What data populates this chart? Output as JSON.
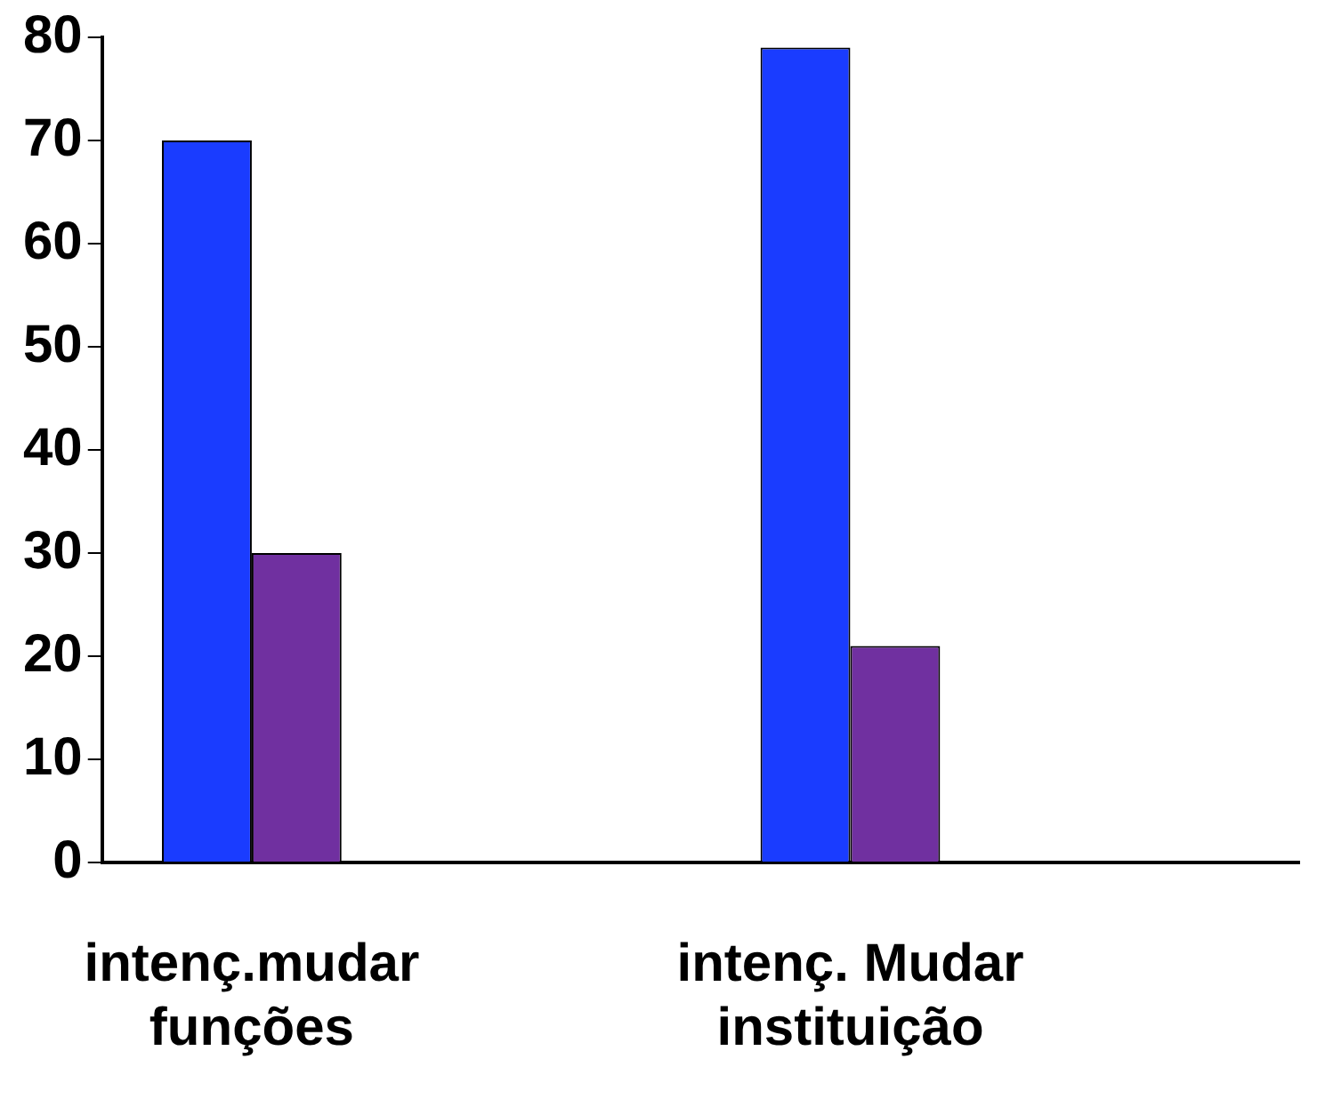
{
  "chart_data": {
    "type": "bar",
    "categories": [
      "intenç.mudar funções",
      null,
      "intenç. Mudar instituição",
      null
    ],
    "series": [
      {
        "color": "#1a3cff",
        "values": [
          70,
          null,
          79,
          null
        ]
      },
      {
        "color": "#7030a0",
        "values": [
          30,
          null,
          21,
          null
        ]
      }
    ],
    "ylim": [
      0,
      80
    ],
    "yticks": [
      0,
      10,
      20,
      30,
      40,
      50,
      60,
      70,
      80
    ],
    "grid": false,
    "legend": false
  }
}
